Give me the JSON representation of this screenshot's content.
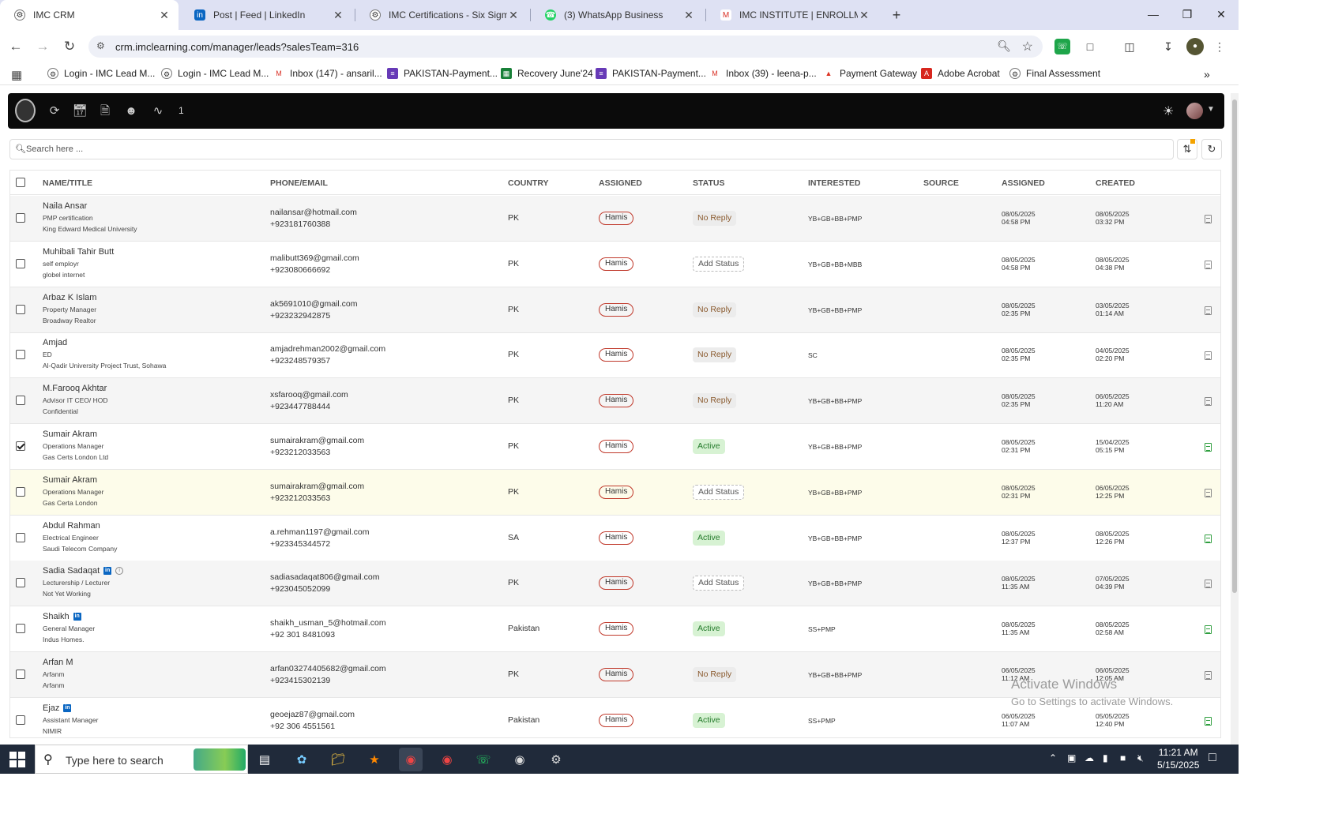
{
  "browser": {
    "tabs": [
      {
        "title": "IMC CRM",
        "icon": "imc-favicon",
        "active": true
      },
      {
        "title": "Post | Feed | LinkedIn",
        "icon": "linkedin-icon",
        "active": false
      },
      {
        "title": "IMC Certifications - Six Sigma C",
        "icon": "imc-favicon",
        "active": false
      },
      {
        "title": "(3) WhatsApp Business",
        "icon": "whatsapp-icon",
        "active": false
      },
      {
        "title": "IMC INSTITUTE | ENROLLMENT",
        "icon": "gmail-icon",
        "active": false
      }
    ],
    "url": "crm.imclearning.com/manager/leads?salesTeam=316",
    "bookmarks": [
      {
        "label": "Login - IMC Lead M...",
        "icon": "imc-favicon"
      },
      {
        "label": "Login - IMC Lead M...",
        "icon": "imc-favicon"
      },
      {
        "label": "Inbox (147) - ansaril...",
        "icon": "gmail-icon"
      },
      {
        "label": "PAKISTAN-Payment...",
        "icon": "forms-icon"
      },
      {
        "label": "Recovery June'24",
        "icon": "sheets-icon"
      },
      {
        "label": "PAKISTAN-Payment...",
        "icon": "forms-icon"
      },
      {
        "label": "Inbox (39) - leena-p...",
        "icon": "gmail-icon"
      },
      {
        "label": "Payment Gateway",
        "icon": "gateway-icon"
      },
      {
        "label": "Adobe Acrobat",
        "icon": "acrobat-icon"
      },
      {
        "label": "Final Assessment",
        "icon": "imc-favicon"
      }
    ]
  },
  "app": {
    "header_count": "1",
    "search_placeholder": "Search here ...",
    "columns": [
      "NAME/TITLE",
      "PHONE/EMAIL",
      "COUNTRY",
      "ASSIGNED",
      "STATUS",
      "INTERESTED",
      "SOURCE",
      "ASSIGNED",
      "CREATED"
    ],
    "rows": [
      {
        "name": "Naila Ansar",
        "title": "PMP certification",
        "org": "King Edward Medical University",
        "email": "nailansar@hotmail.com",
        "phone": "+923181760388",
        "country": "PK",
        "assigned": "Hamis",
        "status": "No Reply",
        "interested": "YB+GB+BB+PMP",
        "assigned_date": "08/05/2025",
        "assigned_time": "04:58 PM",
        "created_date": "08/05/2025",
        "created_time": "03:32 PM",
        "checked": false,
        "linkedin": false,
        "info": false
      },
      {
        "name": "Muhibali Tahir Butt",
        "title": "self employr",
        "org": "globel internet",
        "email": "malibutt369@gmail.com",
        "phone": "+923080666692",
        "country": "PK",
        "assigned": "Hamis",
        "status": "Add Status",
        "interested": "YB+GB+BB+MBB",
        "assigned_date": "08/05/2025",
        "assigned_time": "04:58 PM",
        "created_date": "08/05/2025",
        "created_time": "04:38 PM",
        "checked": false,
        "linkedin": false,
        "info": false
      },
      {
        "name": "Arbaz K Islam",
        "title": "Property Manager",
        "org": "Broadway Realtor",
        "email": "ak5691010@gmail.com",
        "phone": "+923232942875",
        "country": "PK",
        "assigned": "Hamis",
        "status": "No Reply",
        "interested": "YB+GB+BB+PMP",
        "assigned_date": "08/05/2025",
        "assigned_time": "02:35 PM",
        "created_date": "03/05/2025",
        "created_time": "01:14 AM",
        "checked": false,
        "linkedin": false,
        "info": false
      },
      {
        "name": "Amjad",
        "title": "ED",
        "org": "Al-Qadir University Project Trust, Sohawa",
        "email": "amjadrehman2002@gmail.com",
        "phone": "+923248579357",
        "country": "PK",
        "assigned": "Hamis",
        "status": "No Reply",
        "interested": "SC",
        "assigned_date": "08/05/2025",
        "assigned_time": "02:35 PM",
        "created_date": "04/05/2025",
        "created_time": "02:20 PM",
        "checked": false,
        "linkedin": false,
        "info": false
      },
      {
        "name": "M.Farooq Akhtar",
        "title": "Advisor IT CEO/ HOD",
        "org": "Confidential",
        "email": "xsfarooq@gmail.com",
        "phone": "+923447788444",
        "country": "PK",
        "assigned": "Hamis",
        "status": "No Reply",
        "interested": "YB+GB+BB+PMP",
        "assigned_date": "08/05/2025",
        "assigned_time": "02:35 PM",
        "created_date": "06/05/2025",
        "created_time": "11:20 AM",
        "checked": false,
        "linkedin": false,
        "info": false
      },
      {
        "name": "Sumair Akram",
        "title": "Operations Manager",
        "org": "Gas Certs London Ltd",
        "email": "sumairakram@gmail.com",
        "phone": "+923212033563",
        "country": "PK",
        "assigned": "Hamis",
        "status": "Active",
        "interested": "YB+GB+BB+PMP",
        "assigned_date": "08/05/2025",
        "assigned_time": "02:31 PM",
        "created_date": "15/04/2025",
        "created_time": "05:15 PM",
        "checked": true,
        "linkedin": false,
        "info": false
      },
      {
        "name": "Sumair Akram",
        "title": "Operations Manager",
        "org": "Gas Certa London",
        "email": "sumairakram@gmail.com",
        "phone": "+923212033563",
        "country": "PK",
        "assigned": "Hamis",
        "status": "Add Status",
        "interested": "YB+GB+BB+PMP",
        "assigned_date": "08/05/2025",
        "assigned_time": "02:31 PM",
        "created_date": "06/05/2025",
        "created_time": "12:25 PM",
        "checked": false,
        "linkedin": false,
        "info": false
      },
      {
        "name": "Abdul Rahman",
        "title": "Electrical Engineer",
        "org": "Saudi Telecom Company",
        "email": "a.rehman1197@gmail.com",
        "phone": "+923345344572",
        "country": "SA",
        "assigned": "Hamis",
        "status": "Active",
        "interested": "YB+GB+BB+PMP",
        "assigned_date": "08/05/2025",
        "assigned_time": "12:37 PM",
        "created_date": "08/05/2025",
        "created_time": "12:26 PM",
        "checked": false,
        "linkedin": false,
        "info": false
      },
      {
        "name": "Sadia Sadaqat",
        "title": "Lecturership / Lecturer",
        "org": "Not Yet Working",
        "email": "sadiasadaqat806@gmail.com",
        "phone": "+923045052099",
        "country": "PK",
        "assigned": "Hamis",
        "status": "Add Status",
        "interested": "YB+GB+BB+PMP",
        "assigned_date": "08/05/2025",
        "assigned_time": "11:35 AM",
        "created_date": "07/05/2025",
        "created_time": "04:39 PM",
        "checked": false,
        "linkedin": true,
        "info": true
      },
      {
        "name": "Shaikh",
        "title": "General Manager",
        "org": "Indus Homes.",
        "email": "shaikh_usman_5@hotmail.com",
        "phone": "+92 301 8481093",
        "country": "Pakistan",
        "assigned": "Hamis",
        "status": "Active",
        "interested": "SS+PMP",
        "assigned_date": "08/05/2025",
        "assigned_time": "11:35 AM",
        "created_date": "08/05/2025",
        "created_time": "02:58 AM",
        "checked": false,
        "linkedin": true,
        "info": false
      },
      {
        "name": "Arfan M",
        "title": "Arfanm",
        "org": "Arfanm",
        "email": "arfan03274405682@gmail.com",
        "phone": "+923415302139",
        "country": "PK",
        "assigned": "Hamis",
        "status": "No Reply",
        "interested": "YB+GB+BB+PMP",
        "assigned_date": "06/05/2025",
        "assigned_time": "11:12 AM",
        "created_date": "06/05/2025",
        "created_time": "12:05 AM",
        "checked": false,
        "linkedin": false,
        "info": false
      },
      {
        "name": "Ejaz",
        "title": "Assistant Manager",
        "org": "NIMIR",
        "email": "geoejaz87@gmail.com",
        "phone": "+92 306 4551561",
        "country": "Pakistan",
        "assigned": "Hamis",
        "status": "Active",
        "interested": "SS+PMP",
        "assigned_date": "06/05/2025",
        "assigned_time": "11:07 AM",
        "created_date": "05/05/2025",
        "created_time": "12:40 PM",
        "checked": false,
        "linkedin": true,
        "info": false
      }
    ]
  },
  "watermark": {
    "line1": "Activate Windows",
    "line2": "Go to Settings to activate Windows."
  },
  "taskbar": {
    "search_placeholder": "Type here to search",
    "time": "11:21 AM",
    "date": "5/15/2025"
  }
}
